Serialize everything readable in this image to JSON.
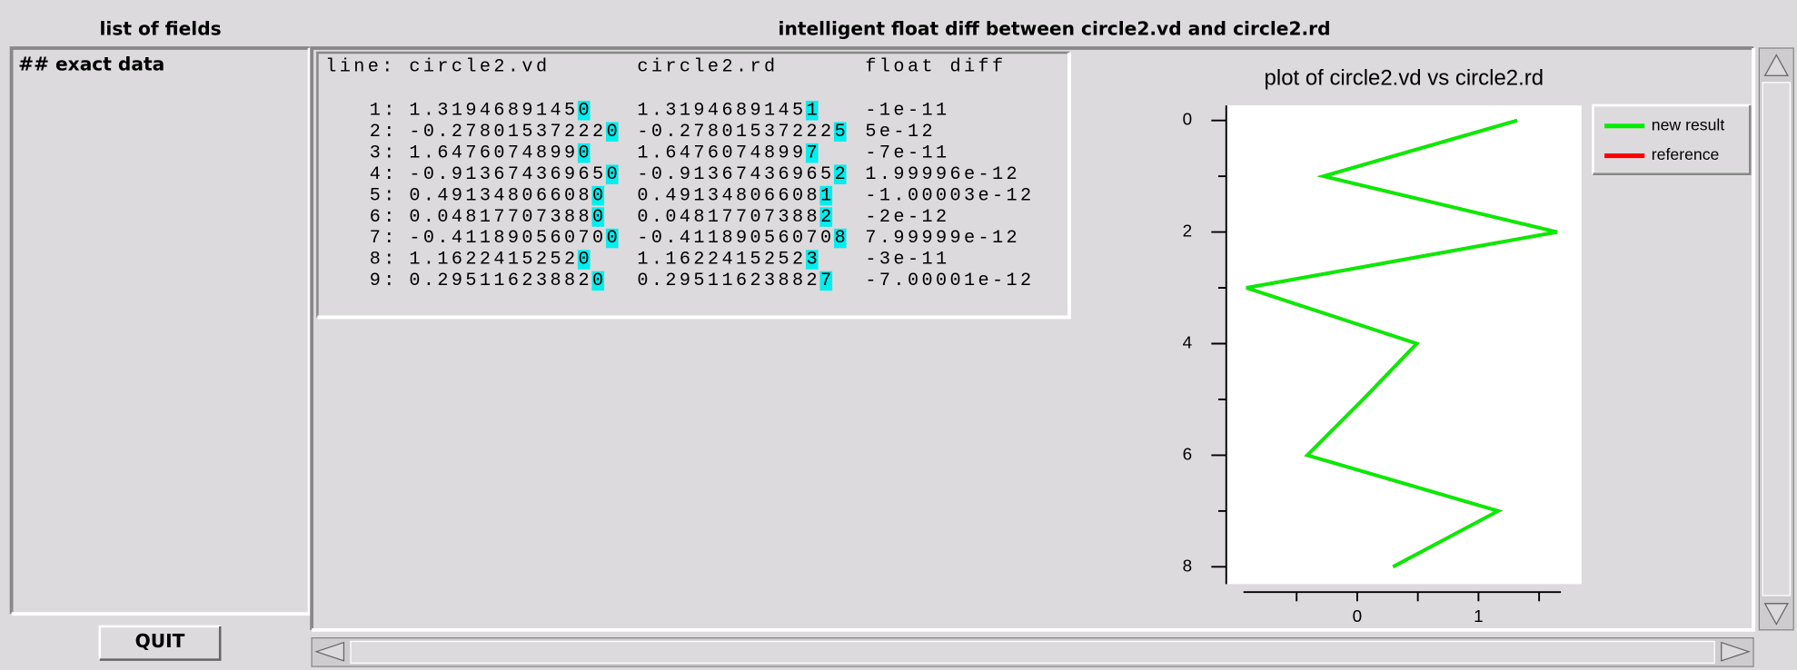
{
  "header": {
    "fields_title": "list of fields",
    "diff_title": "intelligent float diff between circle2.vd and circle2.rd"
  },
  "fields": [
    "## exact data"
  ],
  "buttons": {
    "quit": "QUIT"
  },
  "table": {
    "columns": [
      "line:",
      "circle2.vd",
      "circle2.rd",
      "float diff"
    ],
    "rows": [
      {
        "line": "1:",
        "vd": "1.3194689145",
        "vd_diff": "0",
        "rd": "1.3194689145",
        "rd_diff": "1",
        "diff": "-1e-11"
      },
      {
        "line": "2:",
        "vd": "-0.27801537222",
        "vd_diff": "0",
        "rd": "-0.27801537222",
        "rd_diff": "5",
        "diff": "5e-12"
      },
      {
        "line": "3:",
        "vd": "1.6476074899",
        "vd_diff": "0",
        "rd": "1.6476074899",
        "rd_diff": "7",
        "diff": "-7e-11"
      },
      {
        "line": "4:",
        "vd": "-0.91367436965",
        "vd_diff": "0",
        "rd": "-0.91367436965",
        "rd_diff": "2",
        "diff": "1.99996e-12"
      },
      {
        "line": "5:",
        "vd": "0.49134806608",
        "vd_diff": "0",
        "rd": "0.49134806608",
        "rd_diff": "1",
        "diff": "-1.00003e-12"
      },
      {
        "line": "6:",
        "vd": "0.04817707388",
        "vd_diff": "0",
        "rd": "0.04817707388",
        "rd_diff": "2",
        "diff": "-2e-12"
      },
      {
        "line": "7:",
        "vd": "-0.41189056070",
        "vd_diff": "0",
        "rd": "-0.41189056070",
        "rd_diff": "8",
        "diff": "7.99999e-12"
      },
      {
        "line": "8:",
        "vd": "1.1622415252",
        "vd_diff": "0",
        "rd": "1.1622415252",
        "rd_diff": "3",
        "diff": "-3e-11"
      },
      {
        "line": "9:",
        "vd": "0.29511623882",
        "vd_diff": "0",
        "rd": "0.29511623882",
        "rd_diff": "7",
        "diff": "-7.00001e-12"
      }
    ]
  },
  "chart_data": {
    "type": "line",
    "title": "plot of circle2.vd vs circle2.rd",
    "y": [
      0,
      1,
      2,
      3,
      4,
      5,
      6,
      7,
      8
    ],
    "series": [
      {
        "name": "reference",
        "color": "#ff0000",
        "values": [
          1.31946891451,
          -0.278015372225,
          1.64760748997,
          -0.913674369652,
          0.491348066081,
          0.048177073882,
          -0.411890560708,
          1.16224152523,
          0.295116238827
        ]
      },
      {
        "name": "new result",
        "color": "#00ee00",
        "values": [
          1.3194689145,
          -0.27801537222,
          1.6476074899,
          -0.91367436965,
          0.49134806608,
          0.04817707388,
          -0.4118905607,
          1.1622415252,
          0.29511623882
        ]
      }
    ],
    "legend_order": [
      1,
      0
    ],
    "xlim": [
      -1.08,
      1.85
    ],
    "xticks": [
      0,
      1
    ],
    "xminor_ticks": [
      -0.5,
      0.5,
      1.5
    ],
    "ylim": [
      -0.27,
      8.31
    ],
    "yticks": [
      0,
      2,
      4,
      6,
      8
    ],
    "yminor_ticks": [
      1,
      3,
      5,
      7
    ],
    "y_inverted": true,
    "legend": "upper right"
  }
}
